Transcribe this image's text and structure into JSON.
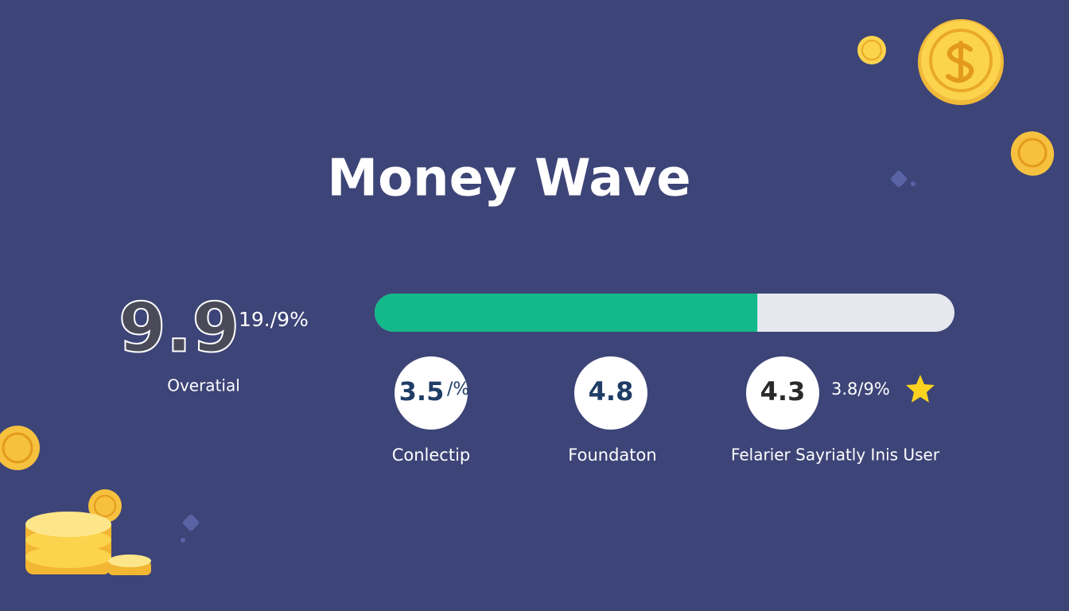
{
  "header": {
    "title": "Money Wave"
  },
  "overall": {
    "score": "9.9",
    "side": "19./9%",
    "label": "Overatial"
  },
  "progress": {
    "value": 66,
    "range": [
      0,
      100
    ]
  },
  "metrics": [
    {
      "value": "3.5",
      "suffix": "/%",
      "label": "Conlectip"
    },
    {
      "value": "4.8",
      "label": "Foundaton"
    },
    {
      "value": "4.3",
      "side": "3.8/9%",
      "label": "Felarier Sayriatly Inis User"
    }
  ]
}
